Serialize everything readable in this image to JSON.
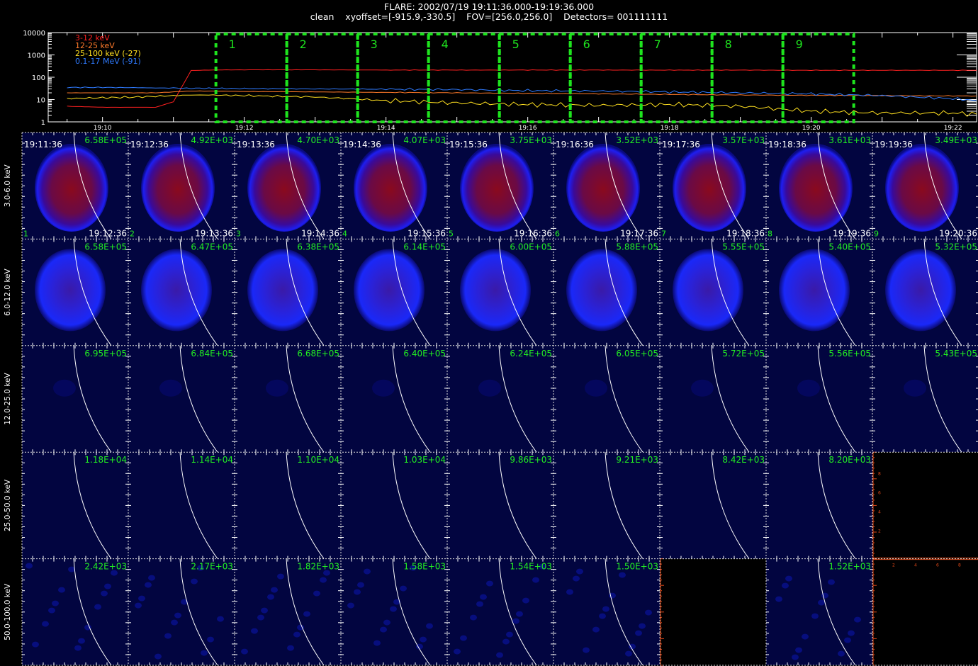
{
  "header": {
    "title": "FLARE: 2002/07/19 19:11:36.000-19:19:36.000",
    "subtitle": "clean    xyoffset=[-915.9,-330.5]    FOV=[256.0,256.0]    Detectors= 001111111"
  },
  "colors": {
    "band_3_12": "#ff2020",
    "band_12_25": "#ff7a2a",
    "band_25_100": "#ffe020",
    "band_01_17": "#2f7bff",
    "interval_box": "#1ee41e",
    "label_green": "#22ee22",
    "image_bg": "#020540",
    "empty_axes": "#e04818"
  },
  "chart_data": [
    {
      "type": "line",
      "title": "",
      "ylabel": "",
      "yscale": "log",
      "ylim": [
        1,
        10000
      ],
      "y_ticks": [
        "1",
        "10",
        "100",
        "1000",
        "10000"
      ],
      "x_ticks": [
        "19:10",
        "19:12",
        "19:14",
        "19:16",
        "19:18",
        "19:20",
        "19:22"
      ],
      "legend": {
        "placement": "top-left",
        "entries": [
          "3-12 keV",
          "12-25 keV",
          "25-100 keV (-27)",
          "0.1-17 MeV (-91)"
        ]
      },
      "intervals": {
        "labels": [
          "1",
          "2",
          "3",
          "4",
          "5",
          "6",
          "7",
          "8",
          "9"
        ],
        "start_times": [
          "19:11:36",
          "19:12:36",
          "19:13:36",
          "19:14:36",
          "19:15:36",
          "19:16:36",
          "19:17:36",
          "19:18:36",
          "19:19:36"
        ]
      },
      "x": [
        "19:09:30",
        "19:10:00",
        "19:10:30",
        "19:10:45",
        "19:11:00",
        "19:11:15",
        "19:11:30",
        "19:12:00",
        "19:13:00",
        "19:14:00",
        "19:15:00",
        "19:16:00",
        "19:17:00",
        "19:18:00",
        "19:19:00",
        "19:20:00",
        "19:21:00",
        "19:22:00",
        "19:22:20"
      ],
      "series": [
        {
          "name": "3-12 keV",
          "values": [
            5,
            4.5,
            4.5,
            4.5,
            8,
            200,
            210,
            215,
            215,
            210,
            210,
            210,
            210,
            208,
            208,
            205,
            205,
            205,
            205
          ]
        },
        {
          "name": "12-25 keV",
          "values": [
            20,
            20,
            20,
            20,
            22,
            24,
            24,
            23,
            22,
            21,
            20,
            19,
            18,
            17,
            16,
            15.5,
            15,
            14.5,
            14.5
          ]
        },
        {
          "name": "25-100 keV (-27)",
          "values": [
            11,
            12,
            13,
            14,
            15,
            16,
            16,
            15,
            13,
            9,
            7,
            6,
            5.5,
            6,
            5,
            3,
            2.5,
            2.5,
            2.2
          ]
        },
        {
          "name": "0.1-17 MeV (-91)",
          "values": [
            35,
            35,
            34,
            33,
            33,
            32,
            32,
            31,
            30,
            29,
            28,
            25,
            24,
            22,
            20,
            18,
            15,
            11,
            9
          ]
        }
      ]
    },
    {
      "type": "heatmap",
      "title": "",
      "bands": [
        "3.0-6.0 keV",
        "6.0-12.0 keV",
        "12.0-25.0 keV",
        "25.0-50.0 keV",
        "50.0-100.0 keV"
      ],
      "intervals": [
        "1",
        "2",
        "3",
        "4",
        "5",
        "6",
        "7",
        "8",
        "9"
      ],
      "start_times": [
        "19:11:36",
        "19:12:36",
        "19:13:36",
        "19:14:36",
        "19:15:36",
        "19:16:36",
        "19:17:36",
        "19:18:36",
        "19:19:36"
      ],
      "end_times": [
        "19:12:36",
        "19:13:36",
        "19:14:36",
        "19:15:36",
        "19:16:36",
        "19:17:36",
        "19:18:36",
        "19:19:36",
        "19:20:36"
      ],
      "max_values": [
        [
          "6.58E+05",
          "4.92E+03",
          "4.70E+03",
          "4.07E+03",
          "3.75E+03",
          "3.52E+03",
          "3.57E+03",
          "3.61E+03",
          "3.49E+03"
        ],
        [
          "6.58E+05",
          "6.47E+05",
          "6.38E+05",
          "6.14E+05",
          "6.00E+05",
          "5.88E+05",
          "5.55E+05",
          "5.40E+05",
          "5.32E+05"
        ],
        [
          "6.95E+05",
          "6.84E+05",
          "6.68E+05",
          "6.40E+05",
          "6.24E+05",
          "6.05E+05",
          "5.72E+05",
          "5.56E+05",
          "5.43E+05"
        ],
        [
          "1.18E+04",
          "1.14E+04",
          "1.10E+04",
          "1.03E+04",
          "9.86E+03",
          "9.21E+03",
          "8.42E+03",
          "8.20E+03",
          ""
        ],
        [
          "2.42E+03",
          "2.17E+03",
          "1.82E+03",
          "1.58E+03",
          "1.54E+03",
          "1.50E+03",
          "",
          "1.52E+03",
          ""
        ]
      ],
      "empty_cells": [
        [
          3,
          8
        ],
        [
          4,
          6
        ],
        [
          4,
          8
        ]
      ],
      "empty_axis_ticks": [
        "2",
        "4",
        "6",
        "8"
      ]
    }
  ]
}
